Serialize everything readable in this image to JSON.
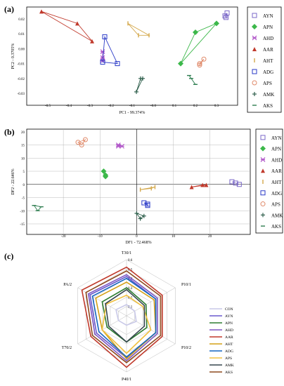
{
  "panel_labels": [
    "(a)",
    "(b)",
    "(c)"
  ],
  "legend_items": [
    "AYN",
    "APN",
    "AHD",
    "AAR",
    "AHT",
    "ADG",
    "APS",
    "AMK",
    "AKS"
  ],
  "chart_data": [
    {
      "type": "scatter",
      "panel": "(a)",
      "xlabel": "PC1 - 99.374%",
      "ylabel": "PC2 - 0.3705%",
      "xlim": [
        -0.6,
        0.4
      ],
      "ylim": [
        -0.038,
        0.028
      ],
      "yticks": [
        "0.02",
        "0.01",
        "0.00",
        "-0.01",
        "-0.02",
        "-0.03"
      ],
      "xticks": [
        "-0.5",
        "-0.4",
        "-0.3",
        "-0.2",
        "-0.1",
        "-0.0",
        "0.1",
        "0.2",
        "0.3"
      ],
      "series": [
        {
          "name": "AYN",
          "color": "#7b68c8",
          "marker": "square",
          "points": [
            [
              0.34,
              0.022
            ],
            [
              0.35,
              0.024
            ],
            [
              0.345,
              0.021
            ]
          ]
        },
        {
          "name": "APN",
          "color": "#3cb84a",
          "marker": "diamond",
          "points": [
            [
              0.13,
              -0.01
            ],
            [
              0.2,
              0.011
            ],
            [
              0.3,
              0.017
            ]
          ]
        },
        {
          "name": "AHD",
          "color": "#b157c9",
          "marker": "star",
          "points": [
            [
              -0.24,
              -0.008
            ],
            [
              -0.24,
              -0.002
            ],
            [
              -0.24,
              -0.006
            ]
          ]
        },
        {
          "name": "AAR",
          "color": "#c0392b",
          "marker": "triangle",
          "points": [
            [
              -0.53,
              0.025
            ],
            [
              -0.36,
              0.017
            ],
            [
              -0.29,
              0.005
            ]
          ]
        },
        {
          "name": "AHT",
          "color": "#d4a84b",
          "marker": "bar",
          "points": [
            [
              -0.12,
              0.017
            ],
            [
              -0.07,
              0.009
            ],
            [
              -0.02,
              0.009
            ]
          ]
        },
        {
          "name": "ADG",
          "color": "#2a3ac7",
          "marker": "square",
          "points": [
            [
              -0.23,
              0.008
            ],
            [
              -0.17,
              -0.01
            ],
            [
              -0.24,
              -0.009
            ]
          ]
        },
        {
          "name": "APS",
          "color": "#e08a6a",
          "marker": "circle",
          "points": [
            [
              0.22,
              -0.011
            ],
            [
              0.24,
              -0.007
            ],
            [
              0.22,
              -0.01
            ]
          ]
        },
        {
          "name": "AMK",
          "color": "#2f5f4c",
          "marker": "plus",
          "points": [
            [
              -0.05,
              -0.02
            ],
            [
              -0.08,
              -0.029
            ],
            [
              -0.06,
              -0.02
            ]
          ]
        },
        {
          "name": "AKS",
          "color": "#2e7d50",
          "marker": "dash",
          "points": [
            [
              0.17,
              -0.018
            ],
            [
              0.2,
              -0.024
            ],
            [
              0.18,
              -0.02
            ]
          ]
        }
      ]
    },
    {
      "type": "scatter",
      "panel": "(b)",
      "xlabel": "DF1 - 72.468%",
      "ylabel": "DF2 - 22.646%",
      "xlim": [
        -30,
        31
      ],
      "ylim": [
        -19,
        21
      ],
      "yticks": [
        "20",
        "15",
        "10",
        "5",
        "0",
        "-5",
        "-10",
        "-15"
      ],
      "xticks": [
        "-20",
        "-10",
        "0",
        "10",
        "20"
      ],
      "series": [
        {
          "name": "AYN",
          "color": "#7b68c8",
          "marker": "square",
          "points": [
            [
              26,
              1
            ],
            [
              28,
              0
            ],
            [
              27,
              0.5
            ]
          ]
        },
        {
          "name": "APN",
          "color": "#3cb84a",
          "marker": "diamond",
          "points": [
            [
              -9,
              5
            ],
            [
              -8.5,
              3.5
            ],
            [
              -8.5,
              3
            ]
          ]
        },
        {
          "name": "AHD",
          "color": "#b157c9",
          "marker": "star",
          "points": [
            [
              -5,
              15
            ],
            [
              -4,
              14.5
            ],
            [
              -5,
              14.5
            ]
          ]
        },
        {
          "name": "AAR",
          "color": "#c0392b",
          "marker": "triangle",
          "points": [
            [
              15,
              -1
            ],
            [
              18,
              -0.2
            ],
            [
              19,
              -0.2
            ]
          ]
        },
        {
          "name": "AHT",
          "color": "#d4a84b",
          "marker": "bar",
          "points": [
            [
              1,
              -2
            ],
            [
              5,
              -1
            ],
            [
              4,
              -1.5
            ]
          ]
        },
        {
          "name": "ADG",
          "color": "#2a3ac7",
          "marker": "square",
          "points": [
            [
              2,
              -7
            ],
            [
              3,
              -8
            ],
            [
              3,
              -7.5
            ]
          ]
        },
        {
          "name": "APS",
          "color": "#e08a6a",
          "marker": "circle",
          "points": [
            [
              -16,
              16
            ],
            [
              -14,
              17
            ],
            [
              -15,
              15
            ]
          ]
        },
        {
          "name": "AMK",
          "color": "#2f5f4c",
          "marker": "plus",
          "points": [
            [
              0,
              -11
            ],
            [
              1,
              -13
            ],
            [
              2,
              -12
            ]
          ]
        },
        {
          "name": "AKS",
          "color": "#2e7d50",
          "marker": "dash",
          "points": [
            [
              -28,
              -8
            ],
            [
              -27,
              -10
            ],
            [
              -26,
              -8.5
            ]
          ]
        }
      ]
    },
    {
      "type": "radar",
      "panel": "(c)",
      "axes": [
        "T30/1",
        "P10/1",
        "P10/2",
        "P40/1",
        "T70/2",
        "PA/2"
      ],
      "rticks": [
        "0.1",
        "0.2",
        "0.3",
        "0.4",
        "0.5",
        "0.6"
      ],
      "rmax": 0.6,
      "series": [
        {
          "name": "CON",
          "color": "#c9c9e8",
          "values": [
            0.12,
            0.1,
            0.12,
            0.1,
            0.1,
            0.13
          ]
        },
        {
          "name": "AYN",
          "color": "#6a5acd",
          "values": [
            0.42,
            0.36,
            0.36,
            0.45,
            0.37,
            0.45
          ]
        },
        {
          "name": "APN",
          "color": "#2e7d32",
          "values": [
            0.3,
            0.24,
            0.25,
            0.28,
            0.24,
            0.3
          ]
        },
        {
          "name": "AHD",
          "color": "#7e57c2",
          "values": [
            0.44,
            0.38,
            0.38,
            0.48,
            0.39,
            0.47
          ]
        },
        {
          "name": "AAR",
          "color": "#c0392b",
          "values": [
            0.52,
            0.44,
            0.44,
            0.55,
            0.44,
            0.55
          ]
        },
        {
          "name": "AHT",
          "color": "#d4a017",
          "values": [
            0.36,
            0.34,
            0.36,
            0.46,
            0.3,
            0.38
          ]
        },
        {
          "name": "ADG",
          "color": "#1565c0",
          "values": [
            0.4,
            0.36,
            0.36,
            0.44,
            0.34,
            0.42
          ]
        },
        {
          "name": "APS",
          "color": "#f0c040",
          "values": [
            0.22,
            0.2,
            0.3,
            0.4,
            0.3,
            0.25
          ]
        },
        {
          "name": "AMK",
          "color": "#37474f",
          "values": [
            0.28,
            0.22,
            0.22,
            0.28,
            0.22,
            0.26
          ]
        },
        {
          "name": "AKS",
          "color": "#8d4a1f",
          "values": [
            0.48,
            0.42,
            0.42,
            0.5,
            0.42,
            0.5
          ]
        }
      ]
    }
  ]
}
